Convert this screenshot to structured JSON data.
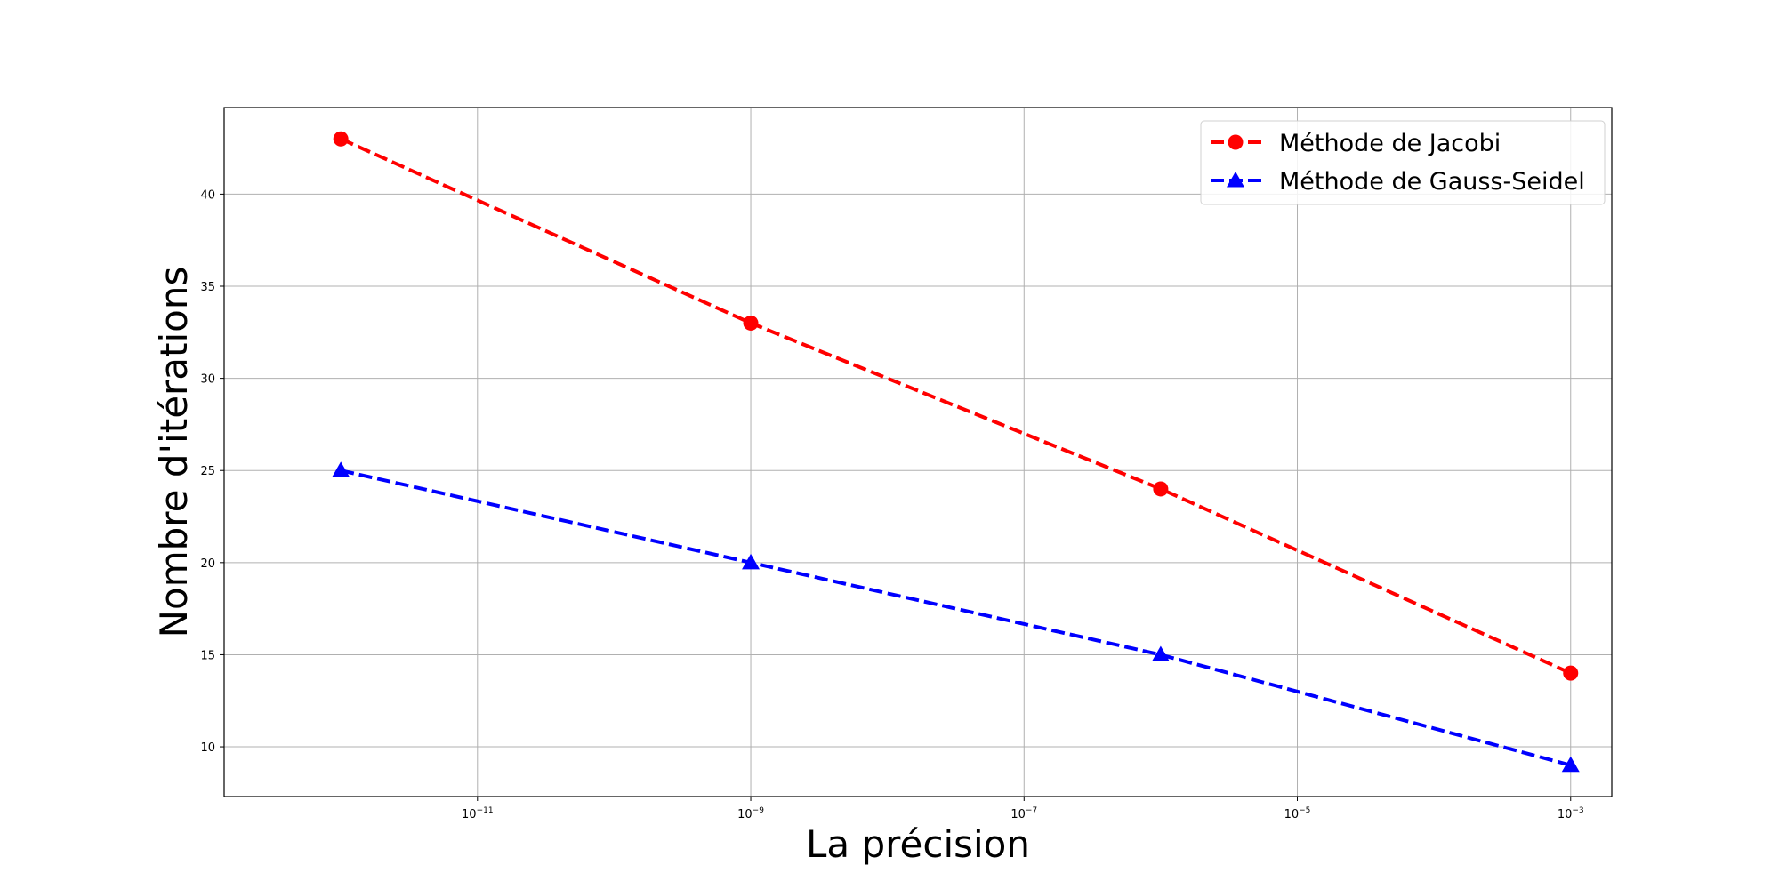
{
  "chart_data": {
    "type": "line",
    "xscale": "log",
    "xlabel": "La précision",
    "ylabel": "Nombre d'itérations",
    "xlim": [
      1.4e-13,
      0.002
    ],
    "ylim": [
      7.3,
      44.7
    ],
    "xticks": [
      {
        "value": 1e-11,
        "base": "10",
        "exp": "−11"
      },
      {
        "value": 1e-09,
        "base": "10",
        "exp": "−9"
      },
      {
        "value": 1e-07,
        "base": "10",
        "exp": "−7"
      },
      {
        "value": 1e-05,
        "base": "10",
        "exp": "−5"
      },
      {
        "value": 0.001,
        "base": "10",
        "exp": "−3"
      }
    ],
    "yticks": [
      10,
      15,
      20,
      25,
      30,
      35,
      40
    ],
    "grid": true,
    "legend_position": "top-right",
    "series": [
      {
        "name": "Méthode de Jacobi",
        "color": "#ff0000",
        "marker": "circle",
        "linestyle": "dashed",
        "x": [
          1e-12,
          1e-09,
          1e-06,
          0.001
        ],
        "y": [
          43,
          33,
          24,
          14
        ]
      },
      {
        "name": "Méthode de Gauss-Seidel",
        "color": "#0000ff",
        "marker": "triangle",
        "linestyle": "dashed",
        "x": [
          1e-12,
          1e-09,
          1e-06,
          0.001
        ],
        "y": [
          25,
          20,
          15,
          9
        ]
      }
    ]
  }
}
